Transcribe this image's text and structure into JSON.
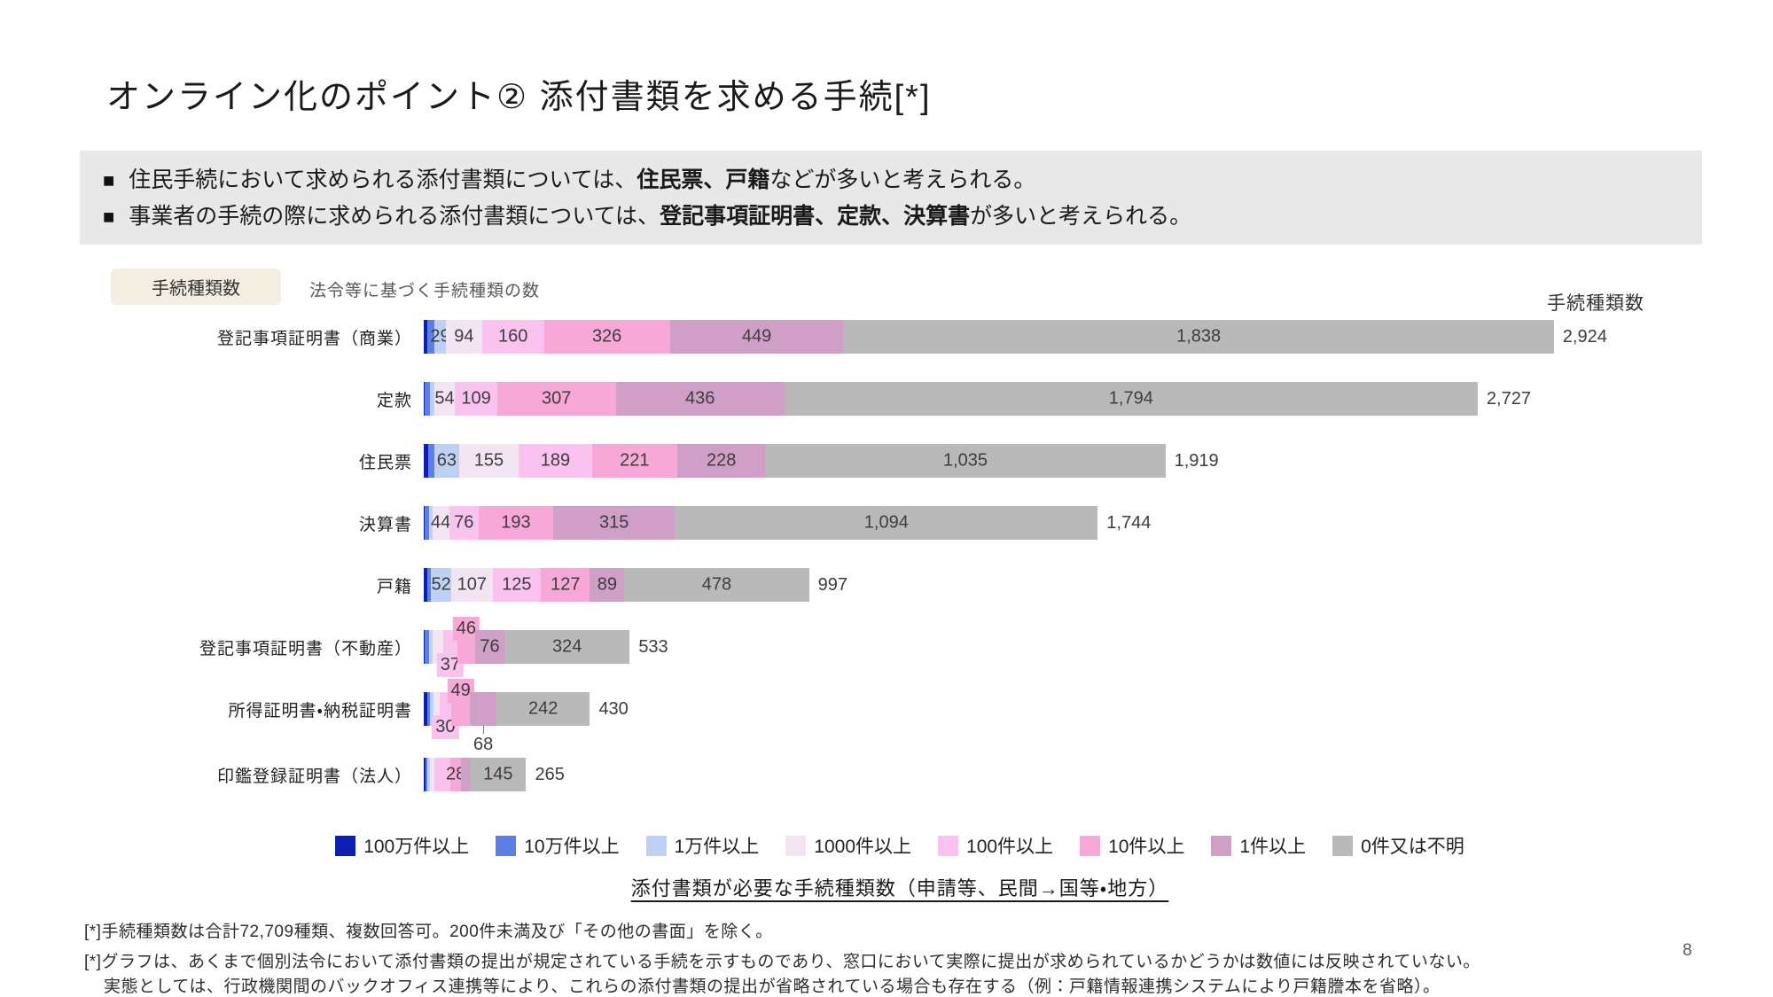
{
  "title": "オンライン化のポイント② 添付書類を求める手続[*]",
  "summary": {
    "marker": "■",
    "bullets": [
      {
        "pre": "住民手続において求められる添付書類については、",
        "strong": "住民票、戸籍",
        "post": "などが多いと考えられる。"
      },
      {
        "pre": "事業者の手続の際に求められる添付書類については、",
        "strong": "登記事項証明書、定款、決算書",
        "post": "が多いと考えられる。"
      }
    ]
  },
  "chart_header": {
    "badge": "手続種類数",
    "badge_note": "法令等に基づく手続種類の数",
    "right_axis_label": "手続種類数"
  },
  "chart_data": {
    "type": "bar",
    "stacked": true,
    "orientation": "horizontal",
    "legend_position": "bottom",
    "value_unit": "手続種類数",
    "series": [
      {
        "name": "100万件以上",
        "color": "#0d1eb2"
      },
      {
        "name": "10万件以上",
        "color": "#5b7fe4"
      },
      {
        "name": "1万件以上",
        "color": "#bed1f5"
      },
      {
        "name": "1000件以上",
        "color": "#f2e4f1"
      },
      {
        "name": "100件以上",
        "color": "#fac3ef"
      },
      {
        "name": "10件以上",
        "color": "#f7a8d6"
      },
      {
        "name": "1件以上",
        "color": "#cf9fc7"
      },
      {
        "name": "0件又は不明",
        "color": "#b9b9b9"
      }
    ],
    "bars": [
      {
        "label": "登記事項証明書（商業）",
        "total": 2924,
        "total_text": "2,924",
        "segments": [
          {
            "s": 0,
            "v": 10,
            "t": ""
          },
          {
            "s": 1,
            "v": 18,
            "t": ""
          },
          {
            "s": 2,
            "v": 29,
            "t": "29"
          },
          {
            "s": 3,
            "v": 94,
            "t": "94"
          },
          {
            "s": 4,
            "v": 160,
            "t": "160"
          },
          {
            "s": 5,
            "v": 326,
            "t": "326"
          },
          {
            "s": 6,
            "v": 449,
            "t": "449"
          },
          {
            "s": 7,
            "v": 1838,
            "t": "1,838"
          }
        ]
      },
      {
        "label": "定款",
        "total": 2727,
        "total_text": "2,727",
        "segments": [
          {
            "s": 0,
            "v": 3,
            "t": ""
          },
          {
            "s": 1,
            "v": 14,
            "t": ""
          },
          {
            "s": 2,
            "v": 10,
            "t": ""
          },
          {
            "s": 3,
            "v": 54,
            "t": "54"
          },
          {
            "s": 4,
            "v": 109,
            "t": "109"
          },
          {
            "s": 5,
            "v": 307,
            "t": "307"
          },
          {
            "s": 6,
            "v": 436,
            "t": "436"
          },
          {
            "s": 7,
            "v": 1794,
            "t": "1,794"
          }
        ]
      },
      {
        "label": "住民票",
        "total": 1919,
        "total_text": "1,919",
        "segments": [
          {
            "s": 0,
            "v": 11,
            "t": ""
          },
          {
            "s": 1,
            "v": 17,
            "t": ""
          },
          {
            "s": 2,
            "v": 63,
            "t": "63"
          },
          {
            "s": 3,
            "v": 155,
            "t": "155"
          },
          {
            "s": 4,
            "v": 189,
            "t": "189"
          },
          {
            "s": 5,
            "v": 221,
            "t": "221"
          },
          {
            "s": 6,
            "v": 228,
            "t": "228"
          },
          {
            "s": 7,
            "v": 1035,
            "t": "1,035"
          }
        ]
      },
      {
        "label": "決算書",
        "total": 1744,
        "total_text": "1,744",
        "segments": [
          {
            "s": 0,
            "v": 2,
            "t": ""
          },
          {
            "s": 1,
            "v": 11,
            "t": ""
          },
          {
            "s": 2,
            "v": 9,
            "t": ""
          },
          {
            "s": 3,
            "v": 44,
            "t": "44"
          },
          {
            "s": 4,
            "v": 76,
            "t": "76"
          },
          {
            "s": 5,
            "v": 193,
            "t": "193"
          },
          {
            "s": 6,
            "v": 315,
            "t": "315"
          },
          {
            "s": 7,
            "v": 1094,
            "t": "1,094"
          }
        ]
      },
      {
        "label": "戸籍",
        "total": 997,
        "total_text": "997",
        "segments": [
          {
            "s": 0,
            "v": 9,
            "t": ""
          },
          {
            "s": 1,
            "v": 10,
            "t": ""
          },
          {
            "s": 2,
            "v": 52,
            "t": "52"
          },
          {
            "s": 3,
            "v": 107,
            "t": "107"
          },
          {
            "s": 4,
            "v": 125,
            "t": "125"
          },
          {
            "s": 5,
            "v": 127,
            "t": "127"
          },
          {
            "s": 6,
            "v": 89,
            "t": "89"
          },
          {
            "s": 7,
            "v": 478,
            "t": "478"
          }
        ]
      },
      {
        "label": "登記事項証明書（不動産）",
        "total": 533,
        "total_text": "533",
        "segments": [
          {
            "s": 0,
            "v": 2,
            "t": ""
          },
          {
            "s": 1,
            "v": 12,
            "t": ""
          },
          {
            "s": 2,
            "v": 10,
            "t": ""
          },
          {
            "s": 3,
            "v": 26,
            "t": ""
          },
          {
            "s": 4,
            "v": 37,
            "t": "37",
            "pos": "down"
          },
          {
            "s": 5,
            "v": 46,
            "t": "46",
            "pos": "up"
          },
          {
            "s": 6,
            "v": 76,
            "t": "76"
          },
          {
            "s": 7,
            "v": 324,
            "t": "324"
          }
        ]
      },
      {
        "label": "所得証明書・納税証明書",
        "total": 430,
        "total_text": "430",
        "segments": [
          {
            "s": 0,
            "v": 9,
            "t": ""
          },
          {
            "s": 1,
            "v": 7,
            "t": ""
          },
          {
            "s": 2,
            "v": 9,
            "t": ""
          },
          {
            "s": 3,
            "v": 16,
            "t": ""
          },
          {
            "s": 4,
            "v": 30,
            "t": "30",
            "pos": "down"
          },
          {
            "s": 5,
            "v": 49,
            "t": "49",
            "pos": "up"
          },
          {
            "s": 6,
            "v": 68,
            "t": "68",
            "pos": "below"
          },
          {
            "s": 7,
            "v": 242,
            "t": "242"
          }
        ]
      },
      {
        "label": "印鑑登録証明書（法人）",
        "total": 265,
        "total_text": "265",
        "segments": [
          {
            "s": 0,
            "v": 5,
            "t": ""
          },
          {
            "s": 1,
            "v": 4,
            "t": ""
          },
          {
            "s": 2,
            "v": 7,
            "t": ""
          },
          {
            "s": 3,
            "v": 11,
            "t": ""
          },
          {
            "s": 4,
            "v": 42,
            "t": ""
          },
          {
            "s": 5,
            "v": 28,
            "t": "28"
          },
          {
            "s": 6,
            "v": 23,
            "t": ""
          },
          {
            "s": 7,
            "v": 145,
            "t": "145"
          }
        ]
      }
    ],
    "caption": "添付書類が必要な手続種類数（申請等、民間→国等・地方）"
  },
  "footnotes": {
    "note1": "[*]手続種類数は合計72,709種類、複数回答可。200件未満及び「その他の書面」を除く。",
    "note2_line1": "[*]グラフは、あくまで個別法令において添付書類の提出が規定されている手続を示すものであり、窓口において実際に提出が求められているかどうかは数値には反映されていない。",
    "note2_line2": "実態としては、行政機関間のバックオフィス連携等により、これらの添付書類の提出が省略されている場合も存在する（例：戸籍情報連携システムにより戸籍謄本を省略）。"
  },
  "page_number": "8"
}
